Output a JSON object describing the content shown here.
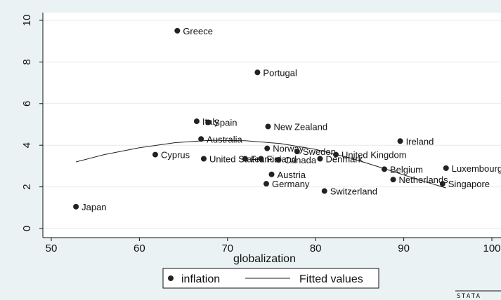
{
  "chart_data": {
    "type": "scatter",
    "xlabel": "globalization",
    "ylabel": "",
    "xlim": [
      50,
      100
    ],
    "ylim": [
      0,
      10
    ],
    "x_ticks": [
      50,
      60,
      70,
      80,
      90,
      100
    ],
    "y_ticks": [
      0,
      2,
      4,
      6,
      8,
      10
    ],
    "x_tick_labels": [
      "50",
      "60",
      "70",
      "80",
      "90",
      "100"
    ],
    "y_tick_labels": [
      "0",
      "2",
      "4",
      "6",
      "8",
      "10"
    ],
    "grid": "horizontal",
    "legend_position": "bottom",
    "series": [
      {
        "name": "inflation",
        "kind": "scatter",
        "points": [
          {
            "label": "Greece",
            "x": 64.3,
            "y": 9.5
          },
          {
            "label": "Portugal",
            "x": 73.4,
            "y": 7.5
          },
          {
            "label": "Italy",
            "x": 66.5,
            "y": 5.15
          },
          {
            "label": "Spain",
            "x": 67.8,
            "y": 5.1
          },
          {
            "label": "New Zealand",
            "x": 74.6,
            "y": 4.9
          },
          {
            "label": "Australia",
            "x": 67.0,
            "y": 4.3
          },
          {
            "label": "Ireland",
            "x": 89.6,
            "y": 4.2
          },
          {
            "label": "Norway",
            "x": 74.5,
            "y": 3.85
          },
          {
            "label": "Sweden",
            "x": 77.9,
            "y": 3.7
          },
          {
            "label": "United Kingdom",
            "x": 82.3,
            "y": 3.55
          },
          {
            "label": "Cyprus",
            "x": 61.8,
            "y": 3.55
          },
          {
            "label": "United States",
            "x": 67.3,
            "y": 3.35
          },
          {
            "label": "France",
            "x": 72.0,
            "y": 3.35
          },
          {
            "label": "Finland",
            "x": 73.8,
            "y": 3.35
          },
          {
            "label": "Canada",
            "x": 75.8,
            "y": 3.3
          },
          {
            "label": "Denmark",
            "x": 80.5,
            "y": 3.35
          },
          {
            "label": "Luxembourg",
            "x": 94.8,
            "y": 2.9
          },
          {
            "label": "Belgium",
            "x": 87.8,
            "y": 2.85
          },
          {
            "label": "Austria",
            "x": 75.0,
            "y": 2.6
          },
          {
            "label": "Netherlands",
            "x": 88.8,
            "y": 2.35
          },
          {
            "label": "Germany",
            "x": 74.4,
            "y": 2.15
          },
          {
            "label": "Singapore",
            "x": 94.4,
            "y": 2.15
          },
          {
            "label": "Switzerland",
            "x": 81.0,
            "y": 1.8
          },
          {
            "label": "Japan",
            "x": 52.8,
            "y": 1.05
          }
        ]
      },
      {
        "name": "Fitted values",
        "kind": "line",
        "x": [
          52.8,
          56,
          60,
          64,
          68,
          72,
          76,
          80,
          84,
          88,
          92,
          94.8
        ],
        "y": [
          3.2,
          3.55,
          3.88,
          4.12,
          4.24,
          4.22,
          4.08,
          3.8,
          3.38,
          2.85,
          2.3,
          1.95
        ]
      }
    ],
    "brand": "STATA"
  }
}
